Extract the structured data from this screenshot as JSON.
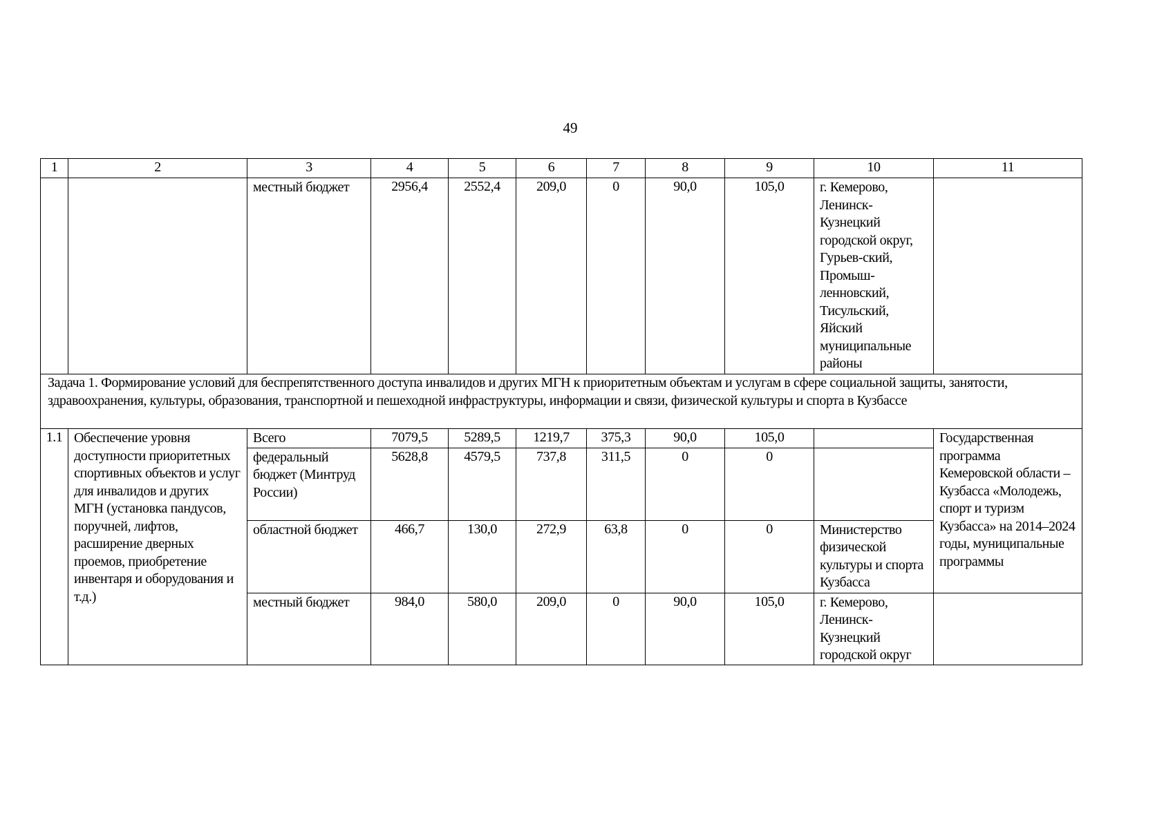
{
  "page_number": "49",
  "header": [
    "1",
    "2",
    "3",
    "4",
    "5",
    "6",
    "7",
    "8",
    "9",
    "10",
    "11"
  ],
  "row_prev": {
    "source": "местный бюджет",
    "values": [
      "2956,4",
      "2552,4",
      "209,0",
      "0",
      "90,0",
      "105,0"
    ],
    "executor": "г. Кемерово, Ленинск-Кузнецкий городской округ, Гурьев-ский, Промыш-ленновский, Тисульский, Яйский муниципальные районы"
  },
  "task": "Задача 1. Формирование условий для беспрепятственного доступа инвалидов и других МГН к приоритетным объектам и услугам в сфере социальной защиты, занятости, здравоохранения, культуры, образования, транспортной и пешеходной инфраструктуры, информации и связи, физической культуры и спорта в Кузбассе",
  "item": {
    "number": "1.1",
    "name": "Обеспечение уровня доступности приоритетных спортивных объектов и услуг для инвалидов и других МГН (установка пандусов, поручней, лифтов, расширение дверных проемов, приобретение инвентаря и оборудования и т.д.)",
    "program": "Государственная программа Кемеровской области – Кузбасса «Молодежь, спорт и туризм Кузбасса» на 2014–2024 годы, муниципальные программы",
    "rows": [
      {
        "source": "Всего",
        "values": [
          "7079,5",
          "5289,5",
          "1219,7",
          "375,3",
          "90,0",
          "105,0"
        ],
        "executor": ""
      },
      {
        "source": "федеральный бюджет (Минтруд России)",
        "values": [
          "5628,8",
          "4579,5",
          "737,8",
          "311,5",
          "0",
          "0"
        ],
        "executor": ""
      },
      {
        "source": "областной бюджет",
        "values": [
          "466,7",
          "130,0",
          "272,9",
          "63,8",
          "0",
          "0"
        ],
        "executor": "Министерство физической культуры и спорта Кузбасса"
      },
      {
        "source": "местный бюджет",
        "values": [
          "984,0",
          "580,0",
          "209,0",
          "0",
          "90,0",
          "105,0"
        ],
        "executor": "г. Кемерово, Ленинск-Кузнецкий городской округ"
      }
    ]
  }
}
